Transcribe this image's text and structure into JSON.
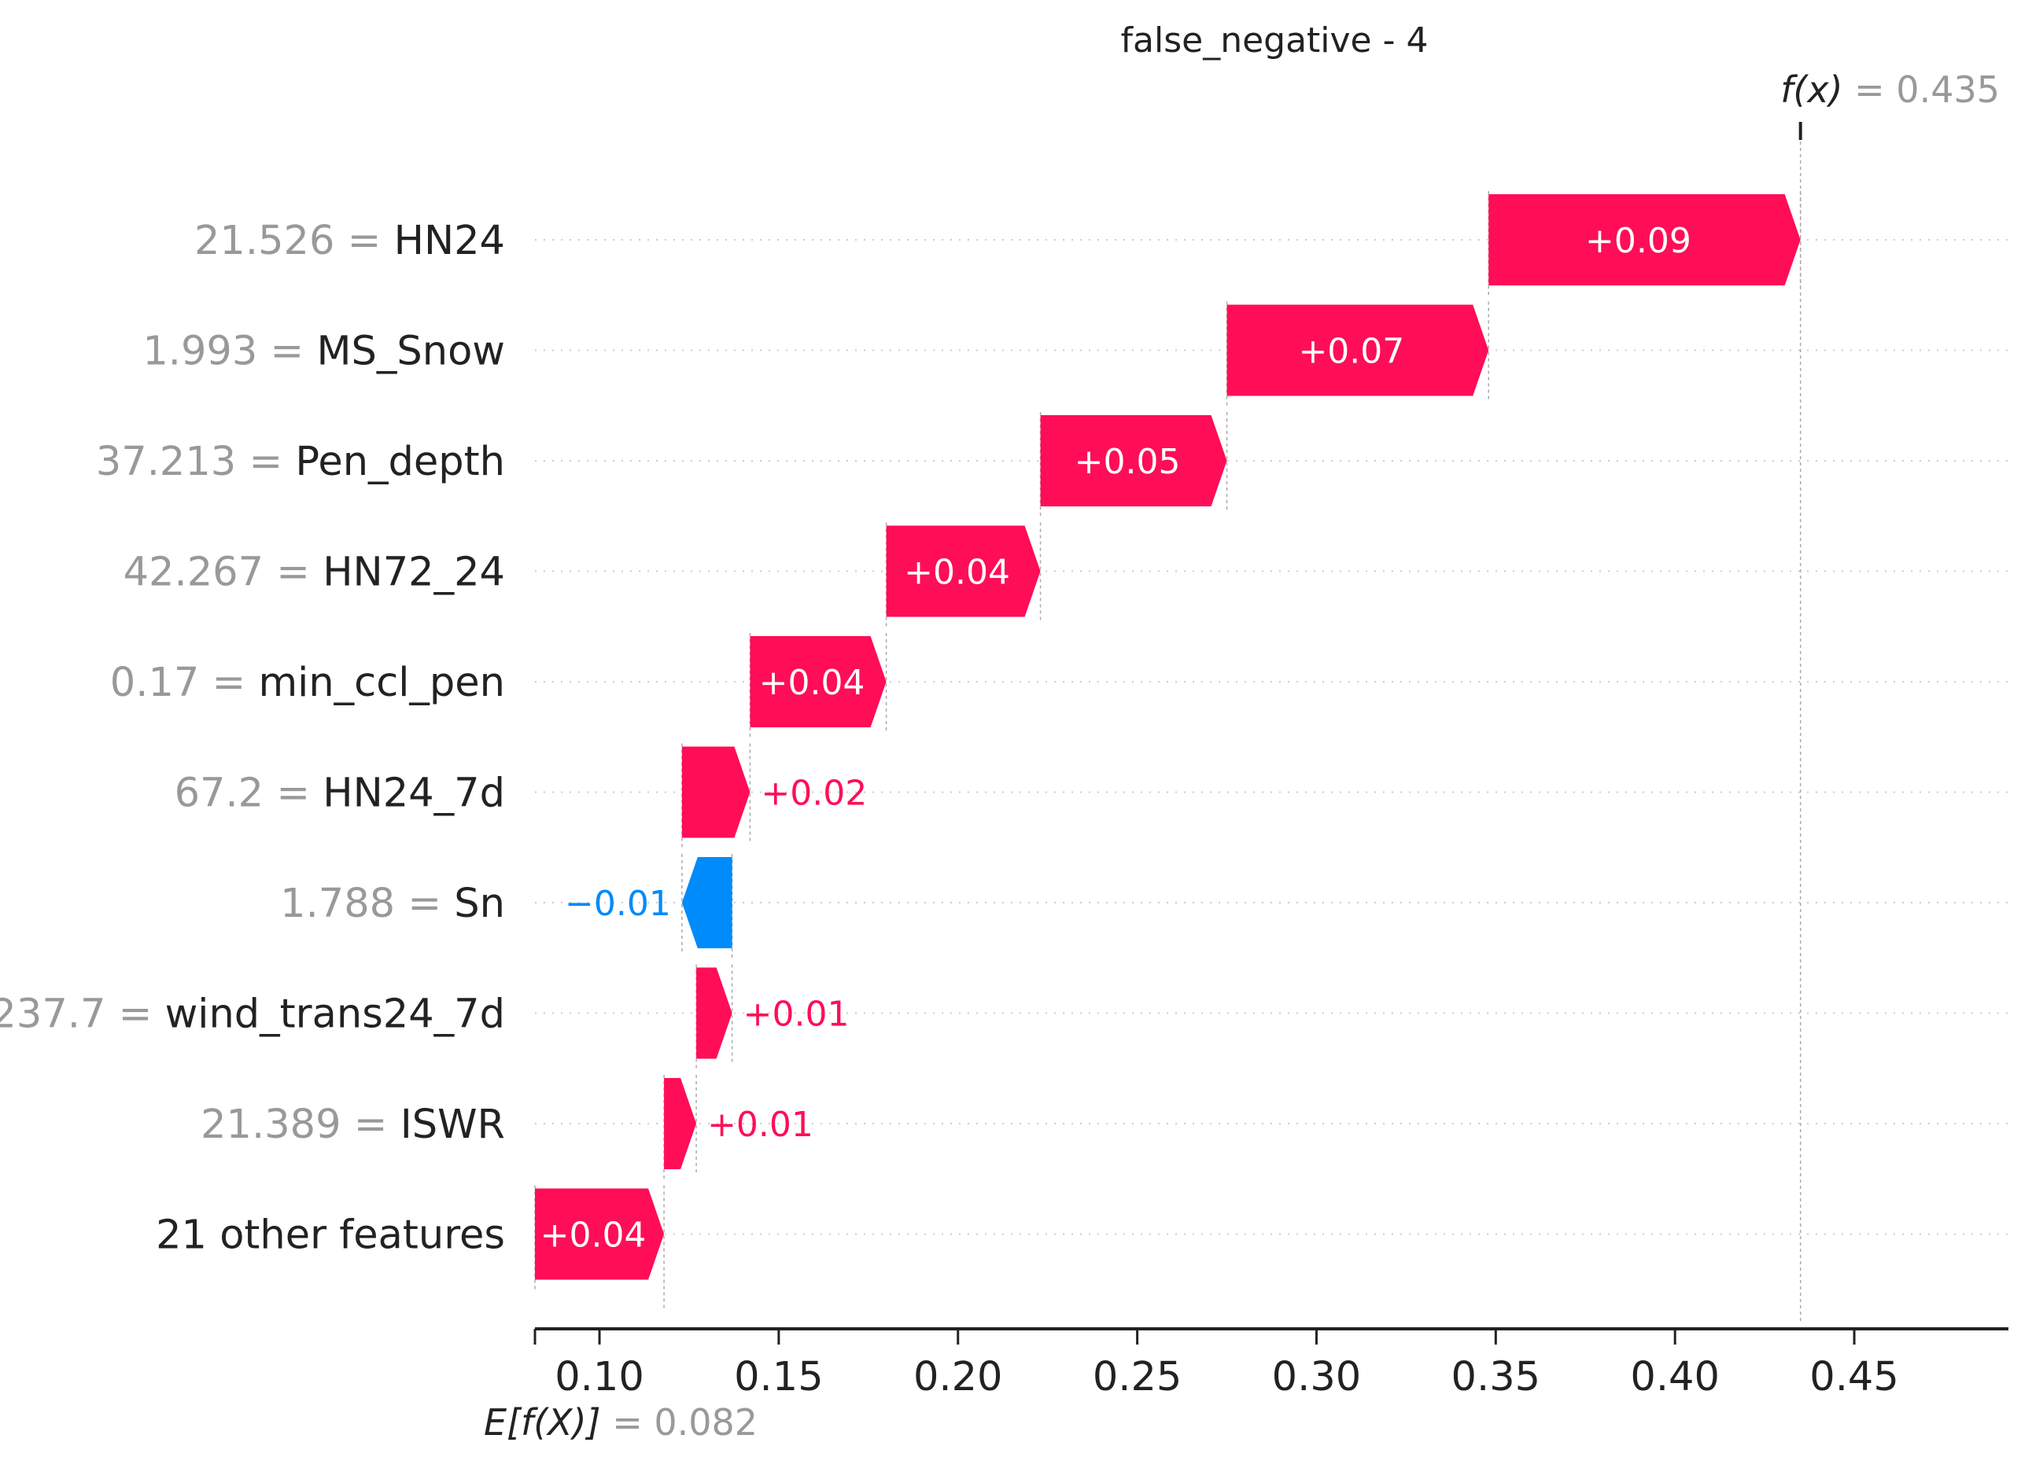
{
  "chart_data": {
    "type": "waterfall",
    "title": "false_negative - 4",
    "base_value": 0.082,
    "base_label": {
      "expr": "E[f(X)]",
      "eq": "= 0.082"
    },
    "output_value": 0.435,
    "output_label": {
      "expr": "f(x)",
      "eq": "= 0.435"
    },
    "xlim": [
      0.082,
      0.493
    ],
    "xticks": [
      0.1,
      0.15,
      0.2,
      0.25,
      0.3,
      0.35,
      0.4,
      0.45
    ],
    "xtick_labels": [
      "0.10",
      "0.15",
      "0.20",
      "0.25",
      "0.30",
      "0.35",
      "0.40",
      "0.45"
    ],
    "grid": "horizontal dotted",
    "colors": {
      "positive": "#ff0d57",
      "negative": "#008bfb",
      "grid": "#cccccc",
      "axis": "#222222",
      "value_text": "#999999"
    },
    "features": [
      {
        "value": "21.526",
        "name": "HN24",
        "start": 0.348,
        "end": 0.435,
        "label": "+0.09"
      },
      {
        "value": "1.993",
        "name": "MS_Snow",
        "start": 0.275,
        "end": 0.348,
        "label": "+0.07"
      },
      {
        "value": "37.213",
        "name": "Pen_depth",
        "start": 0.223,
        "end": 0.275,
        "label": "+0.05"
      },
      {
        "value": "42.267",
        "name": "HN72_24",
        "start": 0.18,
        "end": 0.223,
        "label": "+0.04"
      },
      {
        "value": "0.17",
        "name": "min_ccl_pen",
        "start": 0.142,
        "end": 0.18,
        "label": "+0.04"
      },
      {
        "value": "67.2",
        "name": "HN24_7d",
        "start": 0.123,
        "end": 0.142,
        "label": "+0.02"
      },
      {
        "value": "1.788",
        "name": "Sn",
        "start": 0.137,
        "end": 0.123,
        "label": "−0.01"
      },
      {
        "value": "237.7",
        "name": "wind_trans24_7d",
        "start": 0.127,
        "end": 0.137,
        "label": "+0.01"
      },
      {
        "value": "21.389",
        "name": "ISWR",
        "start": 0.118,
        "end": 0.127,
        "label": "+0.01"
      },
      {
        "value": "",
        "name": "21 other features",
        "start": 0.082,
        "end": 0.118,
        "label": "+0.04"
      }
    ]
  }
}
